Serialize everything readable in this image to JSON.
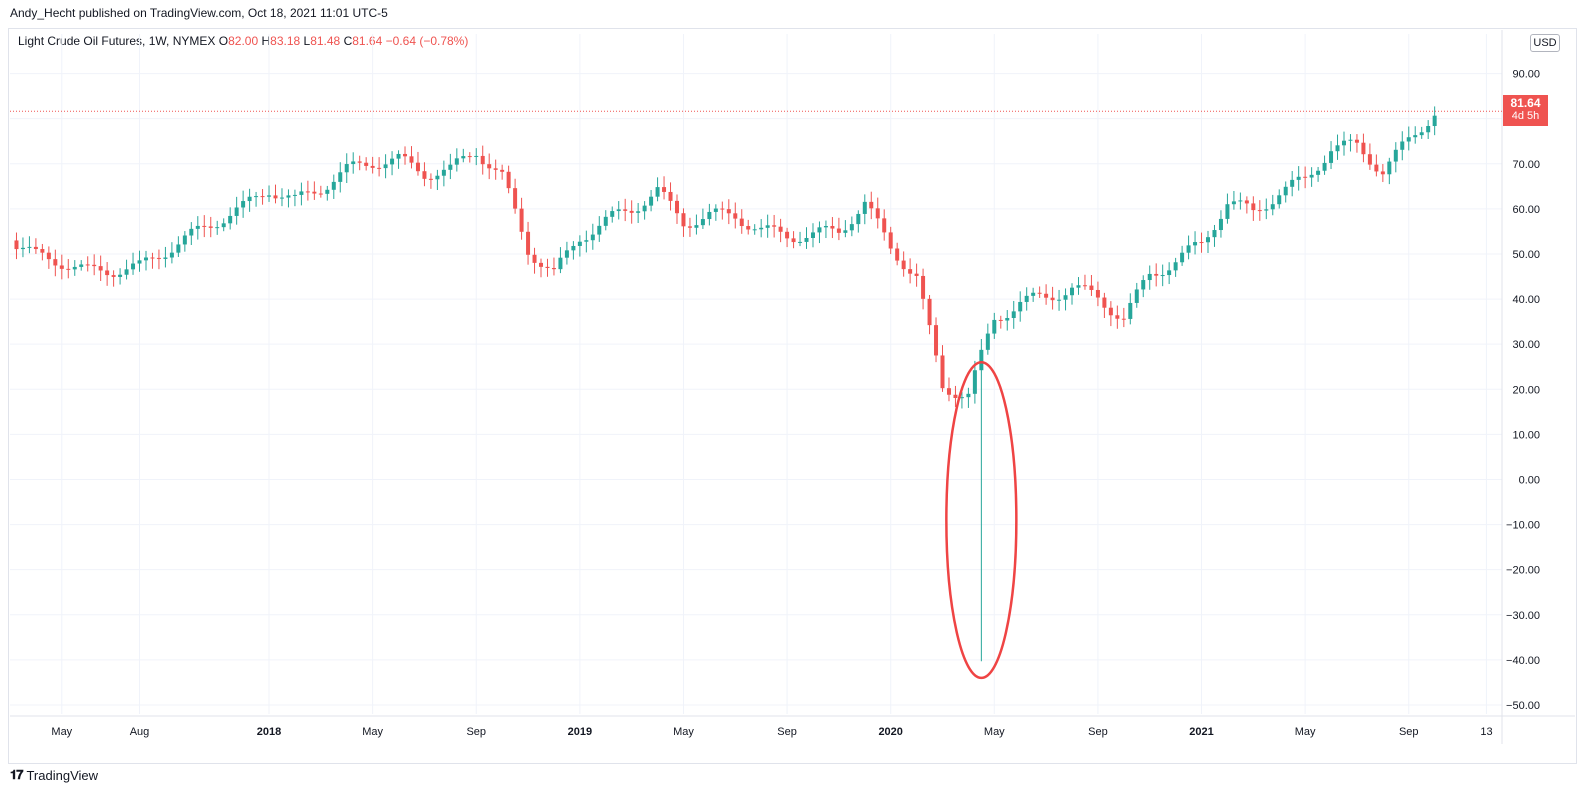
{
  "publisher_line": "Andy_Hecht published on TradingView.com, Oct 18, 2021 11:01 UTC-5",
  "legend": {
    "symbol": "Light Crude Oil Futures, 1W, NYMEX",
    "o_label": "O",
    "o_value": "82.00",
    "h_label": "H",
    "h_value": "83.18",
    "l_label": "L",
    "l_value": "81.48",
    "c_label": "C",
    "c_value": "81.64",
    "change": "−0.64 (−0.78%)"
  },
  "currency_button": "USD",
  "last_price": {
    "price": "81.64",
    "countdown": "4d 5h"
  },
  "footer_brand": "TradingView",
  "colors": {
    "up": "#26a69a",
    "down": "#ef5350",
    "grid": "#f0f3fa",
    "annotation": "#ef4444"
  },
  "chart_data": {
    "type": "candlestick",
    "title": "",
    "symbol": "Light Crude Oil Futures, 1W, NYMEX",
    "ylim": [
      -52,
      97
    ],
    "y_ticks": [
      "90.00",
      "80.00",
      "70.00",
      "60.00",
      "50.00",
      "40.00",
      "30.00",
      "20.00",
      "10.00",
      "0.00",
      "−10.00",
      "−20.00",
      "−30.00",
      "−40.00",
      "−50.00"
    ],
    "x_ticks": [
      {
        "label": "May",
        "x": "2017-05",
        "bold": false
      },
      {
        "label": "Aug",
        "x": "2017-08",
        "bold": false
      },
      {
        "label": "2018",
        "x": "2018-01",
        "bold": true
      },
      {
        "label": "May",
        "x": "2018-05",
        "bold": false
      },
      {
        "label": "Sep",
        "x": "2018-09",
        "bold": false
      },
      {
        "label": "2019",
        "x": "2019-01",
        "bold": true
      },
      {
        "label": "May",
        "x": "2019-05",
        "bold": false
      },
      {
        "label": "Sep",
        "x": "2019-09",
        "bold": false
      },
      {
        "label": "2020",
        "x": "2020-01",
        "bold": true
      },
      {
        "label": "May",
        "x": "2020-05",
        "bold": false
      },
      {
        "label": "Sep",
        "x": "2020-09",
        "bold": false
      },
      {
        "label": "2021",
        "x": "2021-01",
        "bold": true
      },
      {
        "label": "May",
        "x": "2021-05",
        "bold": false
      },
      {
        "label": "Sep",
        "x": "2021-09",
        "bold": false
      },
      {
        "label": "13",
        "x": "2021-12",
        "bold": false
      }
    ],
    "series": [
      {
        "month": "2017-03",
        "close": 53.0
      },
      {
        "month": "2017-04",
        "close": 49.5
      },
      {
        "month": "2017-05",
        "close": 48.3
      },
      {
        "month": "2017-06",
        "close": 46.0
      },
      {
        "month": "2017-07",
        "close": 46.5
      },
      {
        "month": "2017-08",
        "close": 47.0
      },
      {
        "month": "2017-09",
        "close": 50.8
      },
      {
        "month": "2017-10",
        "close": 54.0
      },
      {
        "month": "2017-11",
        "close": 57.5
      },
      {
        "month": "2017-12",
        "close": 60.2
      },
      {
        "month": "2018-01",
        "close": 64.5
      },
      {
        "month": "2018-02",
        "close": 61.6
      },
      {
        "month": "2018-03",
        "close": 64.8
      },
      {
        "month": "2018-04",
        "close": 68.5
      },
      {
        "month": "2018-05",
        "close": 70.5
      },
      {
        "month": "2018-06",
        "close": 70.8
      },
      {
        "month": "2018-07",
        "close": 68.0
      },
      {
        "month": "2018-08",
        "close": 68.5
      },
      {
        "month": "2018-09",
        "close": 73.0
      },
      {
        "month": "2018-10",
        "close": 67.0
      },
      {
        "month": "2018-11",
        "close": 51.0
      },
      {
        "month": "2018-12",
        "close": 45.5
      },
      {
        "month": "2019-01",
        "close": 53.8
      },
      {
        "month": "2019-02",
        "close": 57.2
      },
      {
        "month": "2019-03",
        "close": 60.1
      },
      {
        "month": "2019-04",
        "close": 63.9
      },
      {
        "month": "2019-05",
        "close": 57.0
      },
      {
        "month": "2019-06",
        "close": 58.5
      },
      {
        "month": "2019-07",
        "close": 58.6
      },
      {
        "month": "2019-08",
        "close": 55.1
      },
      {
        "month": "2019-09",
        "close": 54.1
      },
      {
        "month": "2019-10",
        "close": 54.2
      },
      {
        "month": "2019-11",
        "close": 55.2
      },
      {
        "month": "2019-12",
        "close": 61.1
      },
      {
        "month": "2020-01",
        "close": 51.6
      },
      {
        "month": "2020-02",
        "close": 44.8
      },
      {
        "month": "2020-03",
        "close": 20.5
      },
      {
        "month": "2020-04",
        "close": 18.8
      },
      {
        "month": "2020-05",
        "close": 35.5
      },
      {
        "month": "2020-06",
        "close": 39.3
      },
      {
        "month": "2020-07",
        "close": 40.3
      },
      {
        "month": "2020-08",
        "close": 42.6
      },
      {
        "month": "2020-09",
        "close": 40.2
      },
      {
        "month": "2020-10",
        "close": 35.8
      },
      {
        "month": "2020-11",
        "close": 45.3
      },
      {
        "month": "2020-12",
        "close": 48.5
      },
      {
        "month": "2021-01",
        "close": 52.2
      },
      {
        "month": "2021-02",
        "close": 61.5
      },
      {
        "month": "2021-03",
        "close": 59.2
      },
      {
        "month": "2021-04",
        "close": 63.6
      },
      {
        "month": "2021-05",
        "close": 66.3
      },
      {
        "month": "2021-06",
        "close": 73.5
      },
      {
        "month": "2021-07",
        "close": 73.9
      },
      {
        "month": "2021-08",
        "close": 68.5
      },
      {
        "month": "2021-09",
        "close": 75.0
      },
      {
        "month": "2021-10",
        "close": 81.6
      }
    ],
    "extreme_low": {
      "month": "2020-04",
      "low": -40.3
    },
    "last_price": 81.64
  }
}
